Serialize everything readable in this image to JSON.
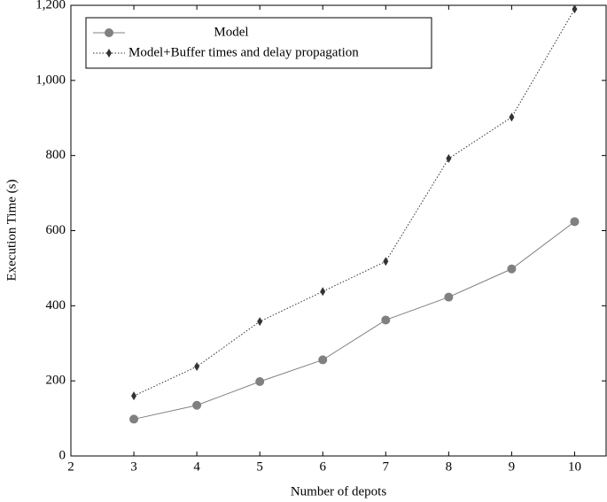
{
  "chart_data": {
    "type": "line",
    "x_label": "Number of depots",
    "y_label": "Execution Time (s)",
    "x": [
      3,
      4,
      5,
      6,
      7,
      8,
      9,
      10
    ],
    "series": [
      {
        "name": "Model",
        "color": "#808080",
        "marker": "circle",
        "linestyle": "solid",
        "values": [
          98,
          135,
          198,
          256,
          362,
          423,
          498,
          624
        ]
      },
      {
        "name": "Model+Buffer times and delay propagation",
        "color": "#333333",
        "marker": "diamond",
        "linestyle": "dotted",
        "values": [
          160,
          238,
          358,
          438,
          518,
          792,
          902,
          1190
        ]
      }
    ],
    "xlim": [
      2,
      10.5
    ],
    "ylim": [
      0,
      1200
    ],
    "xticks": [
      2,
      3,
      4,
      5,
      6,
      7,
      8,
      9,
      10
    ],
    "yticks": [
      0,
      200,
      400,
      600,
      800,
      {
        "value": 1000,
        "label": "1,000"
      },
      {
        "value": 1200,
        "label": "1,200"
      }
    ],
    "legend": "upper-left"
  }
}
